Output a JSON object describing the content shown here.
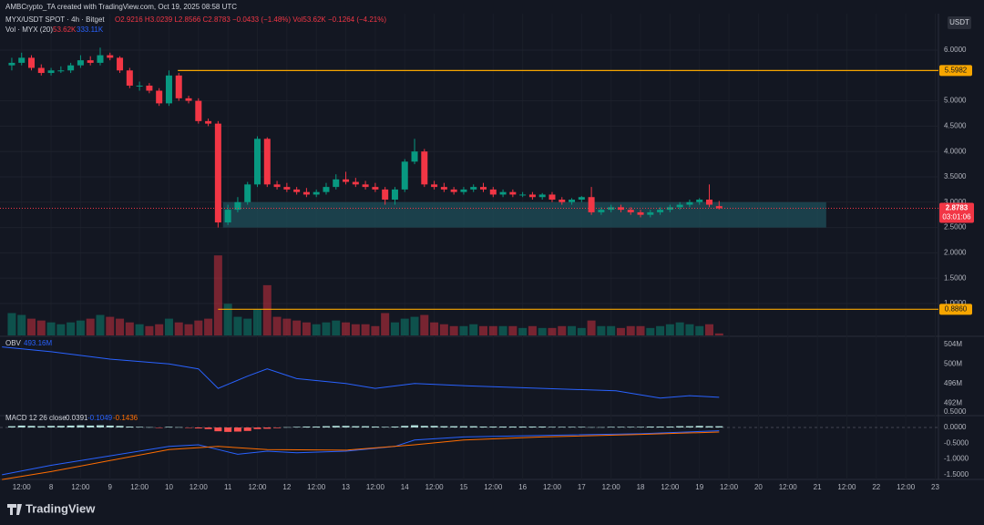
{
  "header": {
    "credit": "AMBCrypto_TA created with TradingView.com, Oct 19, 2025 08:58 UTC",
    "currency": "USDT",
    "logo": "TradingView"
  },
  "chart_data": [
    {
      "type": "candlestick",
      "title": "MYX/USDT SPOT · 4h · Bitget",
      "stats": "O2.9216 H3.0239 L2.8566 C2.8783 −0.0433 (−1.48%)  Vol53.62K −0.1264 (−4.21%)",
      "up_color": "#089981",
      "down_color": "#f23645",
      "x": [
        -16,
        -12,
        -8,
        -4,
        0,
        4,
        8,
        12,
        16,
        20,
        24,
        28,
        32,
        36,
        40,
        44,
        48,
        52,
        56,
        60,
        64,
        68,
        72,
        76,
        80,
        84,
        88,
        92,
        96,
        100,
        104,
        108,
        112,
        116,
        120,
        124,
        128,
        132,
        136,
        140,
        144,
        148,
        152,
        156,
        160,
        164,
        168,
        172,
        176,
        180,
        184,
        188,
        192,
        196,
        200,
        204,
        208,
        212,
        216,
        220,
        224,
        228,
        232,
        236,
        240,
        244,
        248,
        252,
        256,
        260,
        264,
        268,
        272
      ],
      "open": [
        5.7,
        5.75,
        5.85,
        5.65,
        5.55,
        5.6,
        5.6,
        5.7,
        5.8,
        5.75,
        5.9,
        5.85,
        5.6,
        5.3,
        5.3,
        5.2,
        4.95,
        5.5,
        5.05,
        5.0,
        4.6,
        4.55,
        2.6,
        2.85,
        3.0,
        3.35,
        4.25,
        3.35,
        3.3,
        3.25,
        3.2,
        3.15,
        3.2,
        3.3,
        3.45,
        3.4,
        3.35,
        3.3,
        3.25,
        3.05,
        3.25,
        3.8,
        4.0,
        3.35,
        3.3,
        3.25,
        3.2,
        3.25,
        3.3,
        3.25,
        3.15,
        3.2,
        3.15,
        3.15,
        3.1,
        3.15,
        3.05,
        3.0,
        3.05,
        3.1,
        2.8,
        2.85,
        2.9,
        2.85,
        2.8,
        2.75,
        2.8,
        2.85,
        2.9,
        2.95,
        3.0,
        3.05,
        2.9216
      ],
      "high": [
        5.85,
        5.95,
        5.9,
        5.72,
        5.65,
        5.68,
        5.75,
        5.9,
        5.88,
        6.05,
        5.95,
        5.88,
        5.65,
        5.38,
        5.35,
        5.25,
        5.6,
        5.55,
        5.1,
        5.05,
        4.65,
        4.6,
        2.95,
        3.1,
        3.4,
        4.3,
        4.28,
        3.42,
        3.38,
        3.3,
        3.28,
        3.25,
        3.38,
        3.55,
        3.6,
        3.48,
        3.42,
        3.38,
        3.3,
        3.3,
        3.85,
        4.25,
        4.05,
        3.42,
        3.38,
        3.3,
        3.3,
        3.35,
        3.38,
        3.3,
        3.25,
        3.25,
        3.2,
        3.2,
        3.18,
        3.2,
        3.1,
        3.08,
        3.12,
        3.3,
        2.9,
        2.95,
        2.95,
        2.9,
        2.85,
        2.85,
        2.9,
        2.95,
        3.0,
        3.05,
        3.08,
        3.35,
        3.0239
      ],
      "low": [
        5.6,
        5.7,
        5.6,
        5.5,
        5.5,
        5.55,
        5.55,
        5.65,
        5.7,
        5.7,
        5.8,
        5.55,
        5.25,
        5.2,
        5.15,
        4.9,
        4.9,
        5.0,
        4.95,
        4.55,
        4.5,
        2.5,
        2.55,
        2.8,
        2.95,
        3.3,
        3.3,
        3.25,
        3.2,
        3.15,
        3.1,
        3.1,
        3.15,
        3.25,
        3.35,
        3.3,
        3.25,
        3.2,
        2.95,
        2.95,
        3.2,
        3.75,
        3.3,
        3.25,
        3.2,
        3.15,
        3.15,
        3.2,
        3.2,
        3.1,
        3.1,
        3.1,
        3.1,
        3.05,
        3.05,
        3.0,
        2.95,
        2.95,
        3.0,
        2.75,
        2.75,
        2.8,
        2.8,
        2.75,
        2.7,
        2.7,
        2.75,
        2.8,
        2.85,
        2.9,
        2.95,
        2.9,
        2.8566
      ],
      "close": [
        5.75,
        5.85,
        5.65,
        5.55,
        5.6,
        5.6,
        5.7,
        5.8,
        5.75,
        5.9,
        5.85,
        5.6,
        5.3,
        5.3,
        5.2,
        4.95,
        5.5,
        5.05,
        5.0,
        4.6,
        4.55,
        2.6,
        2.85,
        3.0,
        3.35,
        4.25,
        3.35,
        3.3,
        3.25,
        3.2,
        3.15,
        3.2,
        3.3,
        3.45,
        3.4,
        3.35,
        3.3,
        3.25,
        3.05,
        3.25,
        3.8,
        4.0,
        3.35,
        3.3,
        3.25,
        3.2,
        3.25,
        3.3,
        3.25,
        3.15,
        3.2,
        3.15,
        3.15,
        3.1,
        3.15,
        3.05,
        3.0,
        3.05,
        3.1,
        2.8,
        2.85,
        2.9,
        2.85,
        2.8,
        2.75,
        2.8,
        2.85,
        2.9,
        2.95,
        3.0,
        3.05,
        2.95,
        2.8783
      ],
      "countdown": "03:01:06",
      "xlim": [
        -20.8,
        361.3
      ],
      "xticks": [
        {
          "value": -12,
          "label": "12:00"
        },
        {
          "value": 0,
          "label": "8"
        },
        {
          "value": 12,
          "label": "12:00"
        },
        {
          "value": 24,
          "label": "9"
        },
        {
          "value": 36,
          "label": "12:00"
        },
        {
          "value": 48,
          "label": "10"
        },
        {
          "value": 60,
          "label": "12:00"
        },
        {
          "value": 72,
          "label": "11"
        },
        {
          "value": 84,
          "label": "12:00"
        },
        {
          "value": 96,
          "label": "12"
        },
        {
          "value": 108,
          "label": "12:00"
        },
        {
          "value": 120,
          "label": "13"
        },
        {
          "value": 132,
          "label": "12:00"
        },
        {
          "value": 144,
          "label": "14"
        },
        {
          "value": 156,
          "label": "12:00"
        },
        {
          "value": 168,
          "label": "15"
        },
        {
          "value": 180,
          "label": "12:00"
        },
        {
          "value": 192,
          "label": "16"
        },
        {
          "value": 204,
          "label": "12:00"
        },
        {
          "value": 216,
          "label": "17"
        },
        {
          "value": 228,
          "label": "12:00"
        },
        {
          "value": 240,
          "label": "18"
        },
        {
          "value": 252,
          "label": "12:00"
        },
        {
          "value": 264,
          "label": "19"
        },
        {
          "value": 276,
          "label": "12:00"
        },
        {
          "value": 288,
          "label": "20"
        },
        {
          "value": 300,
          "label": "12:00"
        },
        {
          "value": 312,
          "label": "21"
        },
        {
          "value": 324,
          "label": "12:00"
        },
        {
          "value": 336,
          "label": "22"
        },
        {
          "value": 348,
          "label": "12:00"
        },
        {
          "value": 360,
          "label": "23"
        }
      ],
      "ylim": [
        0.37,
        6.72
      ],
      "yticks": [
        {
          "value": 1,
          "label": "1.0000"
        },
        {
          "value": 1.5,
          "label": "1.5000"
        },
        {
          "value": 2,
          "label": "2.0000"
        },
        {
          "value": 2.5,
          "label": "2.5000"
        },
        {
          "value": 3,
          "label": "3.0000"
        },
        {
          "value": 3.5,
          "label": "3.5000"
        },
        {
          "value": 4,
          "label": "4.0000"
        },
        {
          "value": 4.5,
          "label": "4.5000"
        },
        {
          "value": 5,
          "label": "5.0000"
        },
        {
          "value": 6,
          "label": "6.0000"
        }
      ],
      "grid": true,
      "levels": [
        {
          "value": 5.5982,
          "start": 51.6,
          "color": "#f7a600"
        },
        {
          "value": {
            "value": 0.886,
            "label": "0.8860"
          },
          "start": 68,
          "color": "#f7a600"
        }
      ],
      "zone": {
        "low": 2.5,
        "high": 3.0,
        "start": 70,
        "end": 315.6,
        "color": "#1f4f5a"
      },
      "volume": {
        "title": "Vol · MYX (20)",
        "last_label": "53.62K",
        "ma_label": "333.11K",
        "ylim": [
          0,
          2400
        ],
        "values": [
          600,
          550,
          450,
          400,
          350,
          300,
          350,
          400,
          450,
          550,
          500,
          450,
          350,
          300,
          250,
          300,
          450,
          350,
          300,
          400,
          450,
          2150,
          850,
          500,
          450,
          700,
          1350,
          500,
          450,
          400,
          350,
          300,
          350,
          400,
          350,
          300,
          300,
          250,
          600,
          350,
          450,
          500,
          550,
          350,
          300,
          250,
          250,
          300,
          250,
          250,
          250,
          250,
          200,
          250,
          200,
          200,
          250,
          250,
          200,
          400,
          250,
          250,
          200,
          250,
          250,
          200,
          250,
          300,
          350,
          300,
          250,
          300,
          53.62
        ]
      }
    },
    {
      "type": "line",
      "title": "OBV",
      "last_label": "493.16M",
      "color": "#2962ff",
      "x": [
        -20,
        0,
        24,
        48,
        60,
        68,
        80,
        88,
        100,
        120,
        132,
        148,
        170,
        200,
        230,
        248,
        260,
        272
      ],
      "values": [
        503.5,
        502.5,
        501,
        500,
        499,
        495,
        497.5,
        499,
        497,
        496,
        495,
        496,
        495.5,
        495,
        494.5,
        493,
        493.5,
        493.16
      ],
      "ylim": [
        489.6,
        505.1
      ],
      "yticks": [
        {
          "value": 492,
          "label": "492M"
        },
        {
          "value": 496,
          "label": "496M"
        },
        {
          "value": 500,
          "label": "500M"
        },
        {
          "value": 504,
          "label": "504M"
        }
      ]
    },
    {
      "type": "macd",
      "title": "MACD 12 26 close",
      "pos_color": "#b2dfdb",
      "neg_color": "#ff5252",
      "histogram": [
        0.04,
        0.06,
        0.05,
        0.04,
        0.05,
        0.05,
        0.06,
        0.07,
        0.06,
        0.07,
        0.06,
        0.05,
        0.03,
        0.02,
        0.01,
        -0.01,
        0.02,
        0.01,
        -0.01,
        -0.03,
        -0.05,
        -0.12,
        -0.14,
        -0.13,
        -0.11,
        -0.05,
        -0.04,
        -0.02,
        0.01,
        0.02,
        0.03,
        0.03,
        0.04,
        0.05,
        0.05,
        0.04,
        0.04,
        0.03,
        0.02,
        0.03,
        0.05,
        0.07,
        0.05,
        0.05,
        0.04,
        0.04,
        0.04,
        0.04,
        0.03,
        0.03,
        0.03,
        0.03,
        0.03,
        0.03,
        0.03,
        0.02,
        0.02,
        0.02,
        0.02,
        0.01,
        0.01,
        0.02,
        0.02,
        0.02,
        0.02,
        0.03,
        0.03,
        0.03,
        0.04,
        0.04,
        0.05,
        0.04,
        0.0391
      ],
      "series": [
        {
          "color": "#2962ff",
          "x": [
            -20,
            0,
            24,
            48,
            60,
            68,
            76,
            88,
            100,
            120,
            140,
            148,
            168,
            200,
            240,
            272
          ],
          "values": [
            -1.5,
            -1.2,
            -0.9,
            -0.6,
            -0.55,
            -0.7,
            -0.85,
            -0.75,
            -0.8,
            -0.75,
            -0.6,
            -0.4,
            -0.3,
            -0.25,
            -0.2,
            -0.1049
          ]
        },
        {
          "color": "#ff6d00",
          "x": [
            -20,
            0,
            24,
            48,
            68,
            88,
            120,
            148,
            168,
            200,
            240,
            272
          ],
          "values": [
            -1.65,
            -1.4,
            -1.05,
            -0.7,
            -0.6,
            -0.7,
            -0.72,
            -0.55,
            -0.4,
            -0.3,
            -0.22,
            -0.1436
          ]
        }
      ],
      "ylim": [
        -1.705,
        0.607
      ],
      "yticks": [
        {
          "value": -1.5,
          "label": "-1.5000"
        },
        {
          "value": -1,
          "label": "-1.0000"
        },
        {
          "value": -0.5,
          "label": "-0.5000"
        },
        {
          "value": 0,
          "label": "0.0000"
        },
        {
          "value": 0.5,
          "label": "0.5000"
        }
      ]
    }
  ]
}
